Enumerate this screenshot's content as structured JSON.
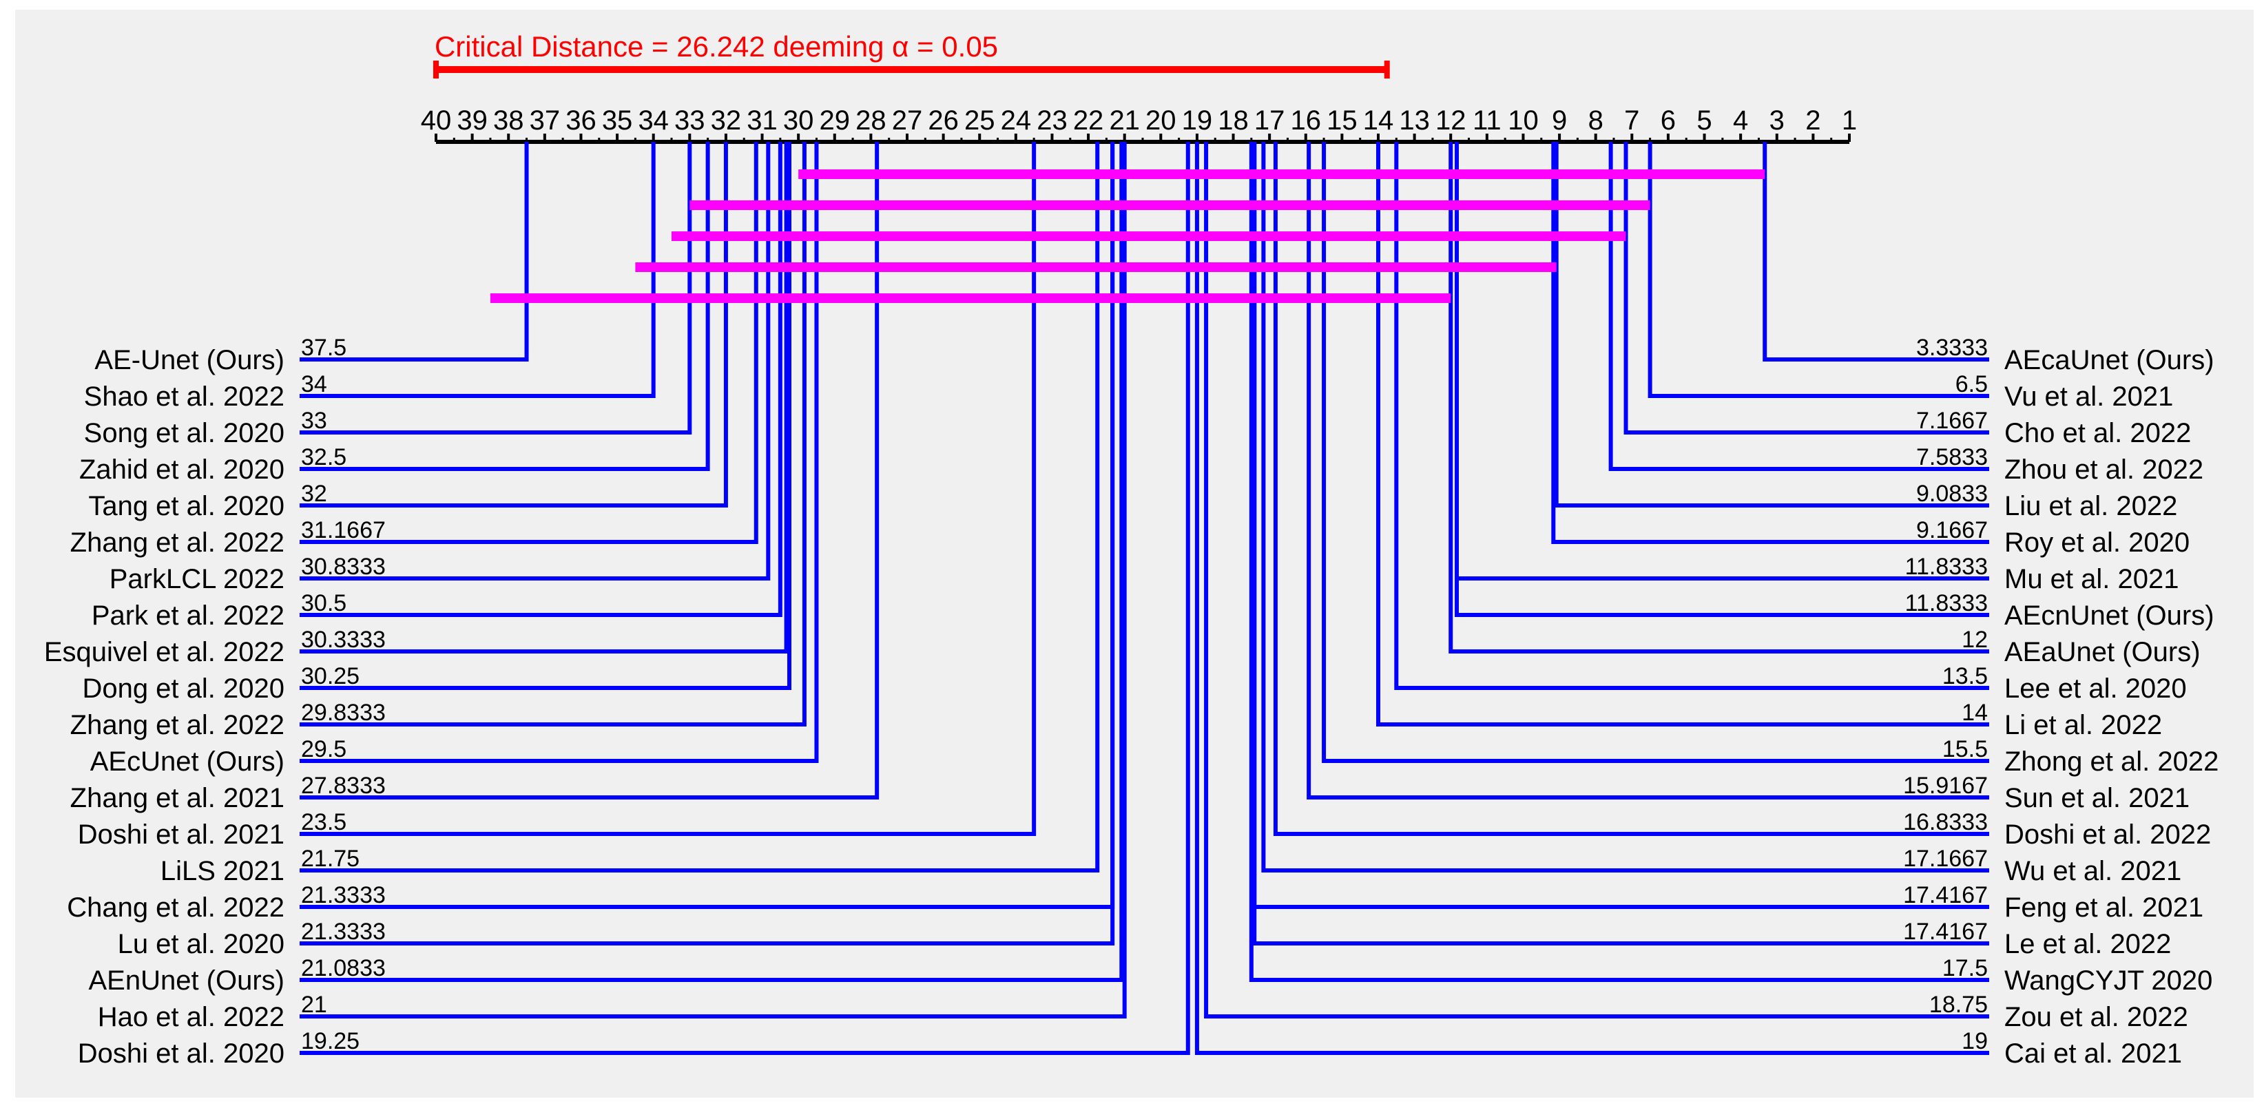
{
  "chart_data": {
    "type": "critical-difference",
    "title": "Critical Distance = 26.242   deeming α = 0.05",
    "critical_distance": 26.242,
    "alpha": 0.05,
    "axis": {
      "min": 1,
      "max": 40,
      "reversed": true,
      "ticks": [
        "40",
        "39",
        "38",
        "37",
        "36",
        "35",
        "34",
        "33",
        "32",
        "31",
        "30",
        "29",
        "28",
        "27",
        "26",
        "25",
        "24",
        "23",
        "22",
        "21",
        "20",
        "19",
        "18",
        "17",
        "16",
        "15",
        "14",
        "13",
        "12",
        "11",
        "10",
        "9",
        "8",
        "7",
        "6",
        "5",
        "4",
        "3",
        "2",
        "1"
      ]
    },
    "left_methods": [
      {
        "name": "AE-Unet (Ours)",
        "label": "37.5",
        "rank": 37.5
      },
      {
        "name": "Shao et al. 2022",
        "label": "34",
        "rank": 34
      },
      {
        "name": "Song et al. 2020",
        "label": "33",
        "rank": 33
      },
      {
        "name": "Zahid et al. 2020",
        "label": "32.5",
        "rank": 32.5
      },
      {
        "name": "Tang et al. 2020",
        "label": "32",
        "rank": 32
      },
      {
        "name": "Zhang et al. 2022",
        "label": "31.1667",
        "rank": 31.1667
      },
      {
        "name": "ParkLCL 2022",
        "label": "30.8333",
        "rank": 30.8333
      },
      {
        "name": "Park et al. 2022",
        "label": "30.5",
        "rank": 30.5
      },
      {
        "name": "Esquivel et al. 2022",
        "label": "30.3333",
        "rank": 30.3333
      },
      {
        "name": "Dong et al. 2020",
        "label": "30.25",
        "rank": 30.25
      },
      {
        "name": "Zhang et al. 2022",
        "label": "29.8333",
        "rank": 29.8333
      },
      {
        "name": "AEcUnet (Ours)",
        "label": "29.5",
        "rank": 29.5
      },
      {
        "name": "Zhang et al. 2021",
        "label": "27.8333",
        "rank": 27.8333
      },
      {
        "name": "Doshi et al. 2021",
        "label": "23.5",
        "rank": 23.5
      },
      {
        "name": "LiLS 2021",
        "label": "21.75",
        "rank": 21.75
      },
      {
        "name": "Chang et al. 2022",
        "label": "21.3333",
        "rank": 21.3333
      },
      {
        "name": "Lu et al. 2020",
        "label": "21.3333",
        "rank": 21.3333
      },
      {
        "name": "AEnUnet (Ours)",
        "label": "21.0833",
        "rank": 21.0833
      },
      {
        "name": "Hao et al. 2022",
        "label": "21",
        "rank": 21
      },
      {
        "name": "Doshi et al. 2020",
        "label": "19.25",
        "rank": 19.25
      }
    ],
    "right_methods": [
      {
        "name": "AEcaUnet (Ours)",
        "label": "3.3333",
        "rank": 3.3333
      },
      {
        "name": "Vu et al. 2021",
        "label": "6.5",
        "rank": 6.5
      },
      {
        "name": "Cho et al. 2022",
        "label": "7.1667",
        "rank": 7.1667
      },
      {
        "name": "Zhou et al. 2022",
        "label": "7.5833",
        "rank": 7.5833
      },
      {
        "name": "Liu et al. 2022",
        "label": "9.0833",
        "rank": 9.0833
      },
      {
        "name": "Roy et al. 2020",
        "label": "9.1667",
        "rank": 9.1667
      },
      {
        "name": "Mu et al. 2021",
        "label": "11.8333",
        "rank": 11.8333
      },
      {
        "name": "AEcnUnet (Ours)",
        "label": "11.8333",
        "rank": 11.8333
      },
      {
        "name": "AEaUnet (Ours)",
        "label": "12",
        "rank": 12
      },
      {
        "name": "Lee et al. 2020",
        "label": "13.5",
        "rank": 13.5
      },
      {
        "name": "Li et al. 2022",
        "label": "14",
        "rank": 14
      },
      {
        "name": "Zhong et al. 2022",
        "label": "15.5",
        "rank": 15.5
      },
      {
        "name": "Sun et al. 2021",
        "label": "15.9167",
        "rank": 15.9167
      },
      {
        "name": "Doshi et al. 2022",
        "label": "16.8333",
        "rank": 16.8333
      },
      {
        "name": "Wu et al. 2021",
        "label": "17.1667",
        "rank": 17.1667
      },
      {
        "name": "Feng et al. 2021",
        "label": "17.4167",
        "rank": 17.4167
      },
      {
        "name": "Le et al. 2022",
        "label": "17.4167",
        "rank": 17.4167
      },
      {
        "name": "WangCYJT 2020",
        "label": "17.5",
        "rank": 17.5
      },
      {
        "name": "Zou et al. 2022",
        "label": "18.75",
        "rank": 18.75
      },
      {
        "name": "Cai et al. 2021",
        "label": "19",
        "rank": 19
      }
    ],
    "cliques": [
      {
        "from": 30,
        "to": 3.3333
      },
      {
        "from": 33,
        "to": 6.5
      },
      {
        "from": 33.5,
        "to": 7.1667
      },
      {
        "from": 34.5,
        "to": 9.0833
      },
      {
        "from": 38.5,
        "to": 12
      }
    ],
    "colors": {
      "method_line": "#0000ff",
      "clique_bar": "#ff00ff",
      "critical_distance": "#ff0000",
      "axis": "#000000",
      "background": "#f0f0f0"
    }
  }
}
